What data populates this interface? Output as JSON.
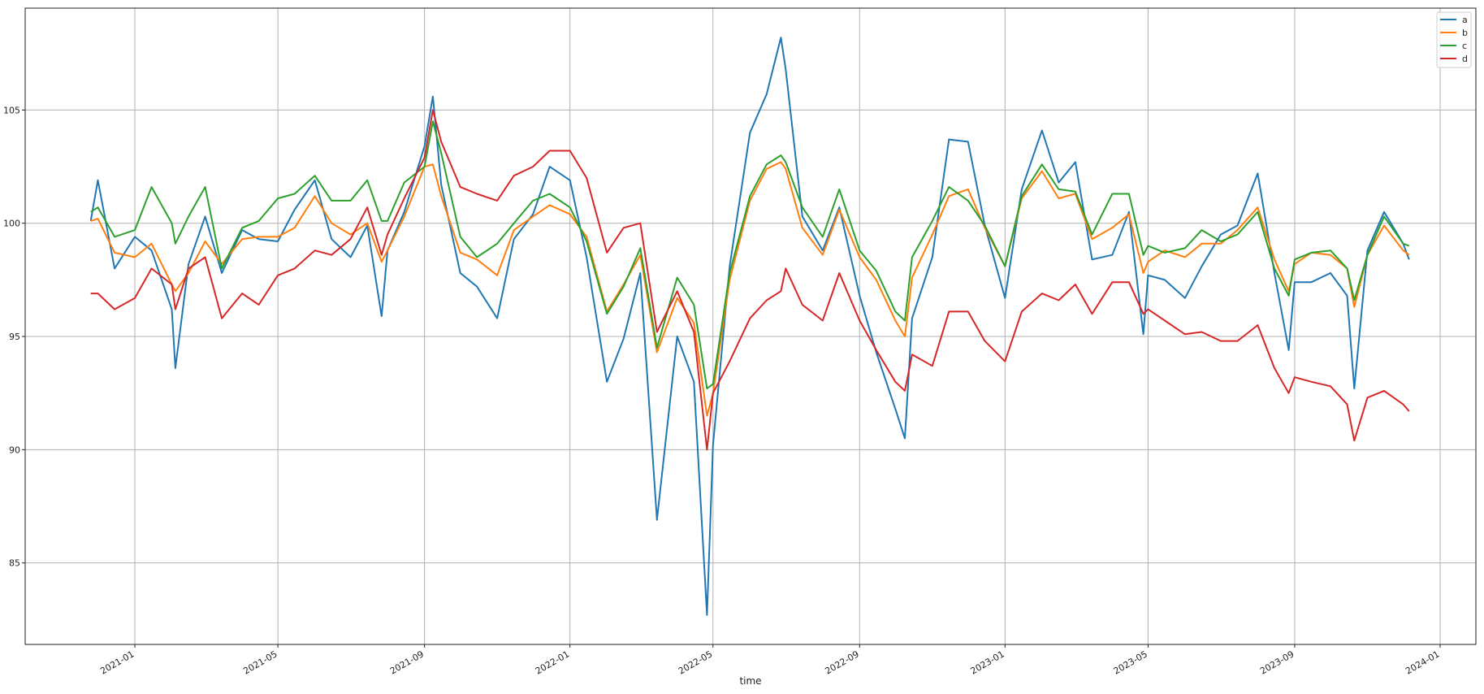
{
  "chart_data": {
    "type": "line",
    "title": "",
    "xlabel": "time",
    "ylabel": "",
    "xlim": [
      "2020-10-01",
      "2024-01-31"
    ],
    "ylim": [
      81.4,
      109.5
    ],
    "grid": true,
    "legend_position": "top-right",
    "x_ticks": [
      "2021-01",
      "2021-05",
      "2021-09",
      "2022-01",
      "2022-05",
      "2022-09",
      "2023-01",
      "2023-05",
      "2023-09",
      "2024-01"
    ],
    "y_ticks": [
      85,
      90,
      95,
      100,
      105
    ],
    "x": [
      "2020-11-25",
      "2020-12-01",
      "2020-12-15",
      "2021-01-01",
      "2021-01-15",
      "2021-02-01",
      "2021-02-04",
      "2021-02-15",
      "2021-03-01",
      "2021-03-15",
      "2021-04-01",
      "2021-04-15",
      "2021-05-01",
      "2021-05-15",
      "2021-06-01",
      "2021-06-15",
      "2021-07-01",
      "2021-07-15",
      "2021-07-27",
      "2021-08-01",
      "2021-08-15",
      "2021-09-01",
      "2021-09-08",
      "2021-09-15",
      "2021-10-01",
      "2021-10-15",
      "2021-11-01",
      "2021-11-15",
      "2021-12-01",
      "2021-12-15",
      "2022-01-01",
      "2022-01-15",
      "2022-02-01",
      "2022-02-15",
      "2022-03-01",
      "2022-03-15",
      "2022-04-01",
      "2022-04-15",
      "2022-04-26",
      "2022-05-01",
      "2022-05-15",
      "2022-06-01",
      "2022-06-15",
      "2022-06-27",
      "2022-07-01",
      "2022-07-15",
      "2022-08-01",
      "2022-08-15",
      "2022-09-01",
      "2022-09-15",
      "2022-10-01",
      "2022-10-09",
      "2022-10-15",
      "2022-11-01",
      "2022-11-15",
      "2022-12-01",
      "2022-12-15",
      "2023-01-01",
      "2023-01-15",
      "2023-02-01",
      "2023-02-15",
      "2023-03-01",
      "2023-03-15",
      "2023-04-01",
      "2023-04-15",
      "2023-04-27",
      "2023-05-01",
      "2023-05-15",
      "2023-06-01",
      "2023-06-15",
      "2023-07-01",
      "2023-07-15",
      "2023-08-01",
      "2023-08-15",
      "2023-08-27",
      "2023-09-01",
      "2023-09-15",
      "2023-10-01",
      "2023-10-15",
      "2023-10-21",
      "2023-11-01",
      "2023-11-15",
      "2023-12-01",
      "2023-12-06"
    ],
    "series": [
      {
        "name": "a",
        "color": "#1f77b4",
        "values": [
          100.1,
          101.9,
          98.0,
          99.4,
          98.8,
          96.2,
          93.6,
          98.2,
          100.3,
          97.8,
          99.7,
          99.3,
          99.2,
          100.6,
          101.9,
          99.3,
          98.5,
          99.9,
          95.9,
          98.8,
          100.5,
          103.4,
          105.6,
          101.7,
          97.8,
          97.2,
          95.8,
          99.3,
          100.4,
          102.5,
          101.9,
          98.5,
          93.0,
          94.9,
          97.8,
          86.9,
          95.0,
          93.0,
          82.7,
          90.2,
          98.1,
          104.0,
          105.7,
          108.2,
          106.8,
          100.3,
          98.8,
          100.7,
          96.8,
          94.3,
          91.8,
          90.5,
          95.8,
          98.5,
          103.7,
          103.6,
          99.9,
          96.7,
          101.5,
          104.1,
          101.8,
          102.7,
          98.4,
          98.6,
          100.5,
          95.1,
          97.7,
          97.5,
          96.7,
          98.1,
          99.5,
          99.9,
          102.2,
          97.8,
          94.4,
          97.4,
          97.4,
          97.8,
          96.8,
          92.7,
          98.8,
          100.5,
          99.1,
          98.4
        ]
      },
      {
        "name": "b",
        "color": "#ff7f0e",
        "values": [
          100.1,
          100.2,
          98.7,
          98.5,
          99.1,
          97.3,
          97.0,
          97.8,
          99.2,
          98.2,
          99.3,
          99.4,
          99.4,
          99.8,
          101.2,
          100.0,
          99.5,
          100.0,
          98.3,
          98.8,
          100.3,
          102.5,
          102.6,
          101.2,
          98.7,
          98.4,
          97.7,
          99.7,
          100.3,
          100.8,
          100.4,
          99.4,
          96.1,
          97.3,
          98.6,
          94.3,
          96.7,
          95.6,
          91.5,
          92.5,
          97.5,
          101.0,
          102.4,
          102.7,
          102.4,
          99.8,
          98.6,
          100.6,
          98.5,
          97.5,
          95.7,
          95.0,
          97.6,
          99.5,
          101.2,
          101.5,
          99.8,
          98.1,
          101.1,
          102.3,
          101.1,
          101.3,
          99.3,
          99.8,
          100.4,
          97.8,
          98.3,
          98.8,
          98.5,
          99.1,
          99.1,
          99.7,
          100.7,
          98.4,
          97.0,
          98.2,
          98.7,
          98.6,
          98.0,
          96.3,
          98.6,
          99.9,
          98.8,
          98.6
        ]
      },
      {
        "name": "c",
        "color": "#2ca02c",
        "values": [
          100.5,
          100.7,
          99.4,
          99.7,
          101.6,
          100.0,
          99.1,
          100.3,
          101.6,
          98.0,
          99.8,
          100.1,
          101.1,
          101.3,
          102.1,
          101.0,
          101.0,
          101.9,
          100.1,
          100.1,
          101.8,
          102.5,
          104.5,
          103.1,
          99.4,
          98.5,
          99.1,
          100.0,
          101.0,
          101.3,
          100.7,
          99.2,
          96.0,
          97.2,
          98.9,
          94.5,
          97.6,
          96.4,
          92.7,
          92.9,
          97.8,
          101.2,
          102.6,
          103.0,
          102.7,
          100.7,
          99.4,
          101.5,
          98.8,
          97.9,
          96.1,
          95.7,
          98.5,
          100.1,
          101.6,
          101.0,
          99.9,
          98.1,
          101.2,
          102.6,
          101.5,
          101.4,
          99.5,
          101.3,
          101.3,
          98.6,
          99.0,
          98.7,
          98.9,
          99.7,
          99.2,
          99.5,
          100.5,
          98.0,
          96.8,
          98.4,
          98.7,
          98.8,
          98.0,
          96.6,
          98.6,
          100.3,
          99.1,
          99.0
        ]
      },
      {
        "name": "d",
        "color": "#d62728",
        "values": [
          96.9,
          96.9,
          96.2,
          96.7,
          98.0,
          97.3,
          96.2,
          98.0,
          98.5,
          95.8,
          96.9,
          96.4,
          97.7,
          98.0,
          98.8,
          98.6,
          99.3,
          100.7,
          98.6,
          99.5,
          101.1,
          102.9,
          105.0,
          103.6,
          101.6,
          101.3,
          101.0,
          102.1,
          102.5,
          103.2,
          103.2,
          102.0,
          98.7,
          99.8,
          100.0,
          95.2,
          97.0,
          95.2,
          90.0,
          92.5,
          93.9,
          95.8,
          96.6,
          97.0,
          98.0,
          96.4,
          95.7,
          97.8,
          95.7,
          94.4,
          93.0,
          92.6,
          94.2,
          93.7,
          96.1,
          96.1,
          94.8,
          93.9,
          96.1,
          96.9,
          96.6,
          97.3,
          96.0,
          97.4,
          97.4,
          96.0,
          96.2,
          95.7,
          95.1,
          95.2,
          94.8,
          94.8,
          95.5,
          93.6,
          92.5,
          93.2,
          93.0,
          92.8,
          92.0,
          90.4,
          92.3,
          92.6,
          92.0,
          91.7
        ]
      }
    ]
  }
}
